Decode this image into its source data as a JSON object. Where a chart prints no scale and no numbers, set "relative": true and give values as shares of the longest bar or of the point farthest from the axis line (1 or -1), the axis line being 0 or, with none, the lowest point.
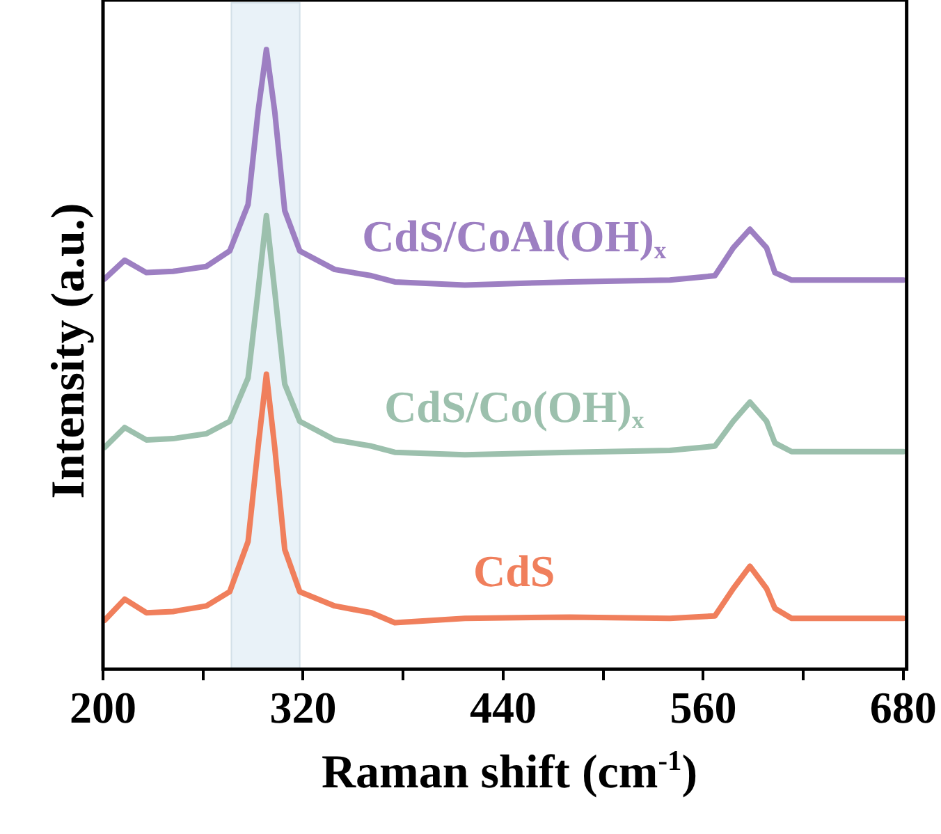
{
  "chart_data": {
    "type": "line",
    "relative": true,
    "xlabel": "Raman shift (cm$^{-1}$)",
    "ylabel": "Intensity (a.u.)",
    "x": [
      201,
      213,
      226,
      242,
      262,
      276,
      287,
      293,
      298,
      303,
      309,
      318,
      339,
      361,
      375,
      417,
      480,
      540,
      567,
      578,
      588,
      598,
      603,
      613,
      650,
      680
    ],
    "xlim": [
      200,
      682
    ],
    "xticks": [
      200,
      {
        "value": 260,
        "label": null
      },
      320,
      {
        "value": 380,
        "label": null
      },
      440,
      {
        "value": 500,
        "label": null
      },
      560,
      {
        "value": 620,
        "label": null
      },
      680
    ],
    "grid": false,
    "legend": false,
    "marker": "none",
    "line_style": "solid",
    "bands": [
      {
        "axis": "x",
        "from": 277,
        "to": 318,
        "color": "#e9f2f8"
      }
    ],
    "series": [
      {
        "name": "CdS",
        "color": "#f07f5c",
        "values": [
          0.079,
          0.113,
          0.091,
          0.093,
          0.102,
          0.125,
          0.206,
          0.358,
          0.476,
          0.358,
          0.193,
          0.125,
          0.102,
          0.091,
          0.075,
          0.082,
          0.084,
          0.082,
          0.086,
          0.13,
          0.166,
          0.13,
          0.098,
          0.082,
          0.082,
          0.082
        ]
      },
      {
        "name": "CdS/Co(OH)$_{x}$",
        "color": "#9cc0ad",
        "values": [
          0.358,
          0.39,
          0.37,
          0.372,
          0.38,
          0.4,
          0.47,
          0.61,
          0.732,
          0.61,
          0.46,
          0.4,
          0.37,
          0.36,
          0.35,
          0.346,
          0.35,
          0.353,
          0.36,
          0.4,
          0.431,
          0.4,
          0.365,
          0.351,
          0.351,
          0.351
        ]
      },
      {
        "name": "CdS/CoAl(OH)$_{x}$",
        "color": "#9d7fc2",
        "values": [
          0.63,
          0.66,
          0.64,
          0.642,
          0.65,
          0.675,
          0.75,
          0.9,
          1.0,
          0.9,
          0.74,
          0.675,
          0.645,
          0.635,
          0.625,
          0.62,
          0.625,
          0.628,
          0.635,
          0.68,
          0.71,
          0.68,
          0.64,
          0.628,
          0.628,
          0.628
        ]
      }
    ]
  }
}
